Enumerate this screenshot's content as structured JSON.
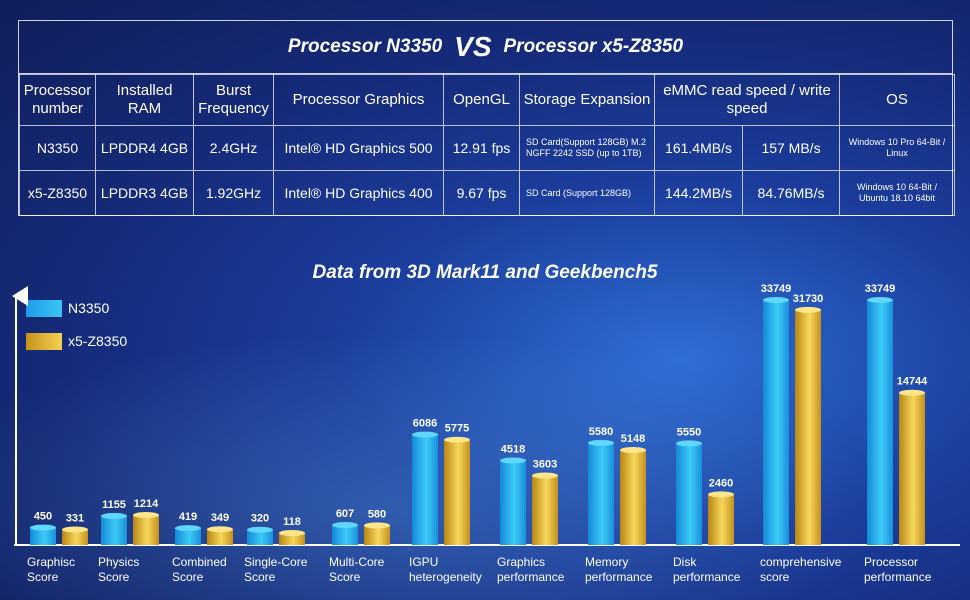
{
  "table": {
    "title_left": "Processor N3350",
    "title_vs": "VS",
    "title_right": "Processor x5-Z8350",
    "headers": [
      "Processor number",
      "Installed RAM",
      "Burst Frequency",
      "Processor Graphics",
      "OpenGL",
      "Storage Expansion",
      "eMMC read speed / write speed",
      "OS"
    ],
    "rows": [
      {
        "processor": "N3350",
        "ram": "LPDDR4 4GB",
        "freq": "2.4GHz",
        "graphics": "Intel® HD Graphics 500",
        "opengl": "12.91 fps",
        "storage": "SD Card(Support 128GB) M.2 NGFF 2242 SSD (up to 1TB)",
        "read": "161.4MB/s",
        "write": "157 MB/s",
        "os": "Windows 10 Pro 64-Bit / Linux"
      },
      {
        "processor": "x5-Z8350",
        "ram": "LPDDR3 4GB",
        "freq": "1.92GHz",
        "graphics": "Intel® HD Graphics 400",
        "opengl": "9.67 fps",
        "storage": "SD Card (Support 128GB)",
        "read": "144.2MB/s",
        "write": "84.76MB/s",
        "os": "Windows 10 64-Bit / Ubuntu 18.10 64bit"
      }
    ]
  },
  "chart_data": {
    "type": "bar",
    "title": "Data from 3D Mark11 and Geekbench5",
    "categories": [
      "Graphisc Score",
      "Physics Score",
      "Combined Score",
      "Single-Core Score",
      "Multi-Core Score",
      "IGPU heterogeneity",
      "Graphics performance",
      "Memory performance",
      "Disk performance",
      "comprehensive score",
      "Processor performance"
    ],
    "series": [
      {
        "name": "N3350",
        "values": [
          450,
          1155,
          419,
          320,
          607,
          6086,
          4518,
          5580,
          5550,
          33749,
          33749
        ],
        "color": "#1fa0ea"
      },
      {
        "name": "x5-Z8350",
        "values": [
          331,
          1214,
          349,
          118,
          580,
          5775,
          3603,
          5148,
          2460,
          31730,
          14744
        ],
        "color": "#e8b93a"
      }
    ],
    "legend": "top-left",
    "grid": false,
    "axis_break": "bars above 6086 are drawn on a compressed scale"
  }
}
